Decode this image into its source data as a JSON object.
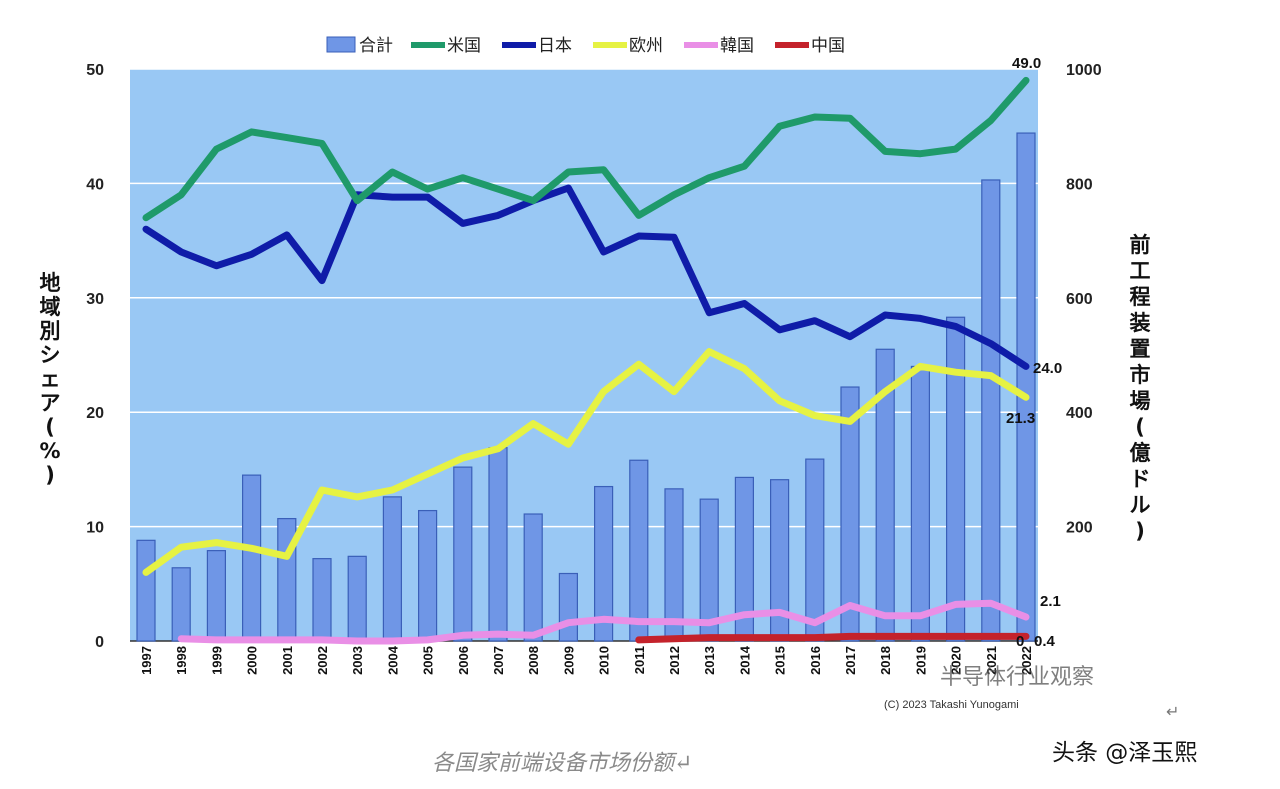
{
  "chart_data": {
    "type": "bar",
    "combo": "bar+line",
    "categories": [
      "1997",
      "1998",
      "1999",
      "2000",
      "2001",
      "2002",
      "2003",
      "2004",
      "2005",
      "2006",
      "2007",
      "2008",
      "2009",
      "2010",
      "2011",
      "2012",
      "2013",
      "2014",
      "2015",
      "2016",
      "2017",
      "2018",
      "2019",
      "2020",
      "2021",
      "2022"
    ],
    "bar_series": {
      "name": "合計",
      "axis": "right",
      "values": [
        176,
        128,
        158,
        290,
        214,
        144,
        148,
        252,
        228,
        304,
        338,
        222,
        118,
        270,
        316,
        266,
        248,
        286,
        282,
        318,
        444,
        510,
        480,
        566,
        806,
        888
      ],
      "color": "#6f96e6"
    },
    "series": [
      {
        "name": "米国",
        "axis": "left",
        "color": "#1f9a6a",
        "values": [
          37.0,
          39.0,
          43.0,
          44.5,
          44.0,
          43.5,
          38.5,
          41.0,
          39.5,
          40.5,
          39.5,
          38.5,
          41.0,
          41.2,
          37.2,
          39.0,
          40.5,
          41.5,
          45.0,
          45.8,
          45.7,
          42.8,
          42.6,
          43.0,
          45.5,
          49.0
        ]
      },
      {
        "name": "日本",
        "axis": "left",
        "color": "#0f1ca8",
        "values": [
          36.0,
          34.0,
          32.8,
          33.8,
          35.5,
          31.5,
          39.0,
          38.8,
          38.8,
          36.5,
          37.2,
          38.5,
          39.6,
          34.0,
          35.4,
          35.3,
          28.7,
          29.5,
          27.2,
          28.0,
          26.6,
          28.5,
          28.2,
          27.5,
          26.0,
          24.0
        ]
      },
      {
        "name": "欧州",
        "axis": "left",
        "color": "#e6f243",
        "values": [
          6.0,
          8.2,
          8.6,
          8.1,
          7.4,
          13.2,
          12.6,
          13.2,
          14.6,
          16.0,
          16.8,
          19.0,
          17.2,
          21.8,
          24.2,
          21.8,
          25.3,
          23.8,
          21.0,
          19.7,
          19.2,
          21.8,
          24.0,
          23.5,
          23.2,
          21.3
        ]
      },
      {
        "name": "韓国",
        "axis": "left",
        "color": "#e98fe6",
        "values": [
          null,
          0.2,
          0.1,
          0.1,
          0.1,
          0.1,
          0.0,
          0.0,
          0.1,
          0.5,
          0.6,
          0.5,
          1.6,
          1.9,
          1.7,
          1.7,
          1.6,
          2.3,
          2.5,
          1.6,
          3.1,
          2.2,
          2.2,
          3.2,
          3.3,
          2.1
        ]
      },
      {
        "name": "中国",
        "axis": "left",
        "color": "#c4222b",
        "values": [
          null,
          null,
          null,
          null,
          null,
          null,
          null,
          null,
          null,
          null,
          null,
          null,
          null,
          null,
          0.1,
          0.2,
          0.3,
          0.3,
          0.3,
          0.3,
          0.4,
          0.4,
          0.4,
          0.4,
          0.4,
          0.4
        ]
      }
    ],
    "ylim_left": [
      0,
      50
    ],
    "ylim_right": [
      0,
      1000
    ],
    "yticks_left": [
      0,
      10,
      20,
      30,
      40,
      50
    ],
    "yticks_right": [
      200,
      400,
      600,
      800,
      1000
    ],
    "ylabel_left": "地域別シェア(%)",
    "ylabel_right": "前工程装置市場(億ドル)",
    "end_labels": [
      "49.0",
      "24.0",
      "21.3",
      "2.1",
      "0.4",
      "0"
    ],
    "grid": true,
    "legend_position": "top"
  },
  "copyright": "(C) 2023 Takashi Yunogami",
  "caption": "各国家前端设备市场份额↵",
  "watermark": "头条 @泽玉熙",
  "overlay_text": "半导体行业观察",
  "return_mark": "↵",
  "colors": {
    "plot_background": "#99c8f4",
    "gridline": "#ffffff"
  }
}
